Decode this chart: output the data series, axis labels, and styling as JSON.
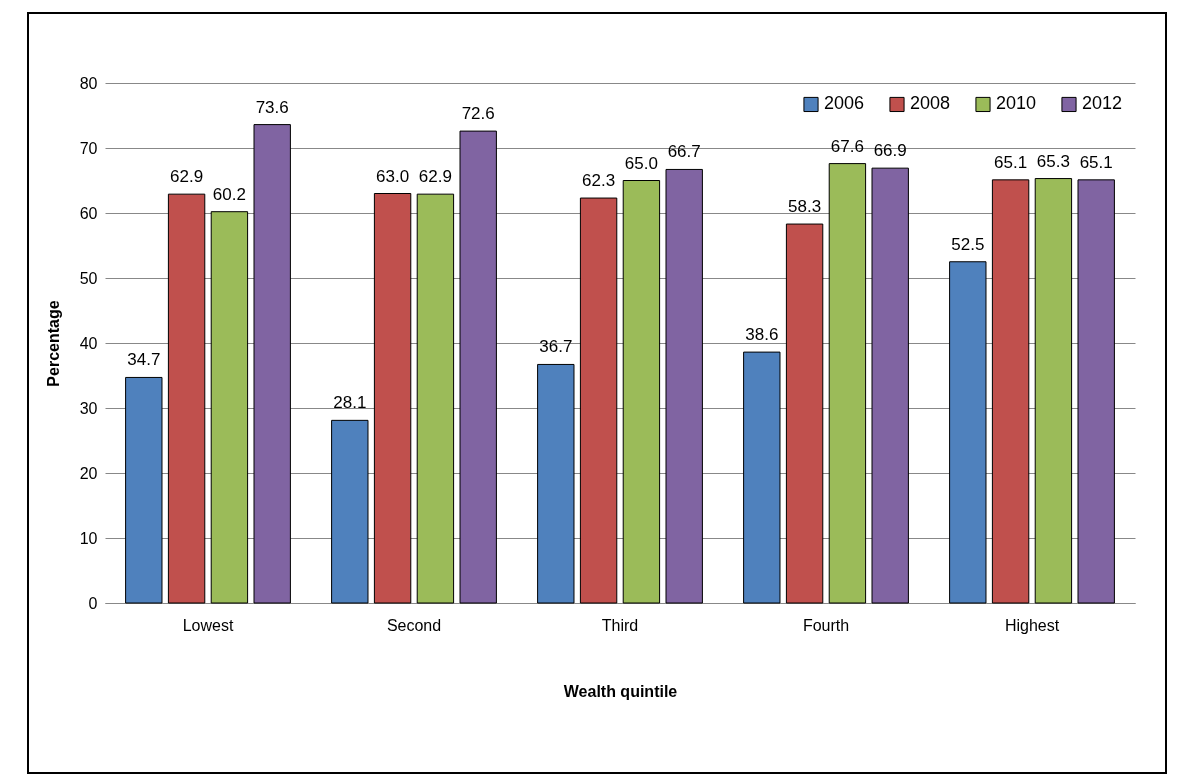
{
  "chart_data": {
    "type": "bar",
    "xlabel": "Wealth quintile",
    "ylabel": "Percentage",
    "categories": [
      "Lowest",
      "Second",
      "Third",
      "Fourth",
      "Highest"
    ],
    "series": [
      {
        "name": "2006",
        "color": "#4f81bd",
        "values": [
          34.7,
          28.1,
          36.7,
          38.6,
          52.5
        ],
        "value_labels": [
          "34.7",
          "28.1",
          "36.7",
          "38.6",
          "52.5"
        ]
      },
      {
        "name": "2008",
        "color": "#c0504d",
        "values": [
          62.9,
          63.0,
          62.3,
          58.3,
          65.1
        ],
        "value_labels": [
          "62.9",
          "63.0",
          "62.3",
          "58.3",
          "65.1"
        ]
      },
      {
        "name": "2010",
        "color": "#9bbb59",
        "values": [
          60.2,
          62.9,
          65.0,
          67.6,
          65.3
        ],
        "value_labels": [
          "60.2",
          "62.9",
          "65.0",
          "67.6",
          "65.3"
        ]
      },
      {
        "name": "2012",
        "color": "#8064a2",
        "values": [
          73.6,
          72.6,
          66.7,
          66.9,
          65.1
        ],
        "value_labels": [
          "73.6",
          "72.6",
          "66.7",
          "66.9",
          "65.1"
        ]
      }
    ],
    "ylim": [
      0,
      80
    ],
    "yticks": [
      0,
      10,
      20,
      30,
      40,
      50,
      60,
      70,
      80
    ],
    "grid": "y",
    "legend": "top right"
  }
}
